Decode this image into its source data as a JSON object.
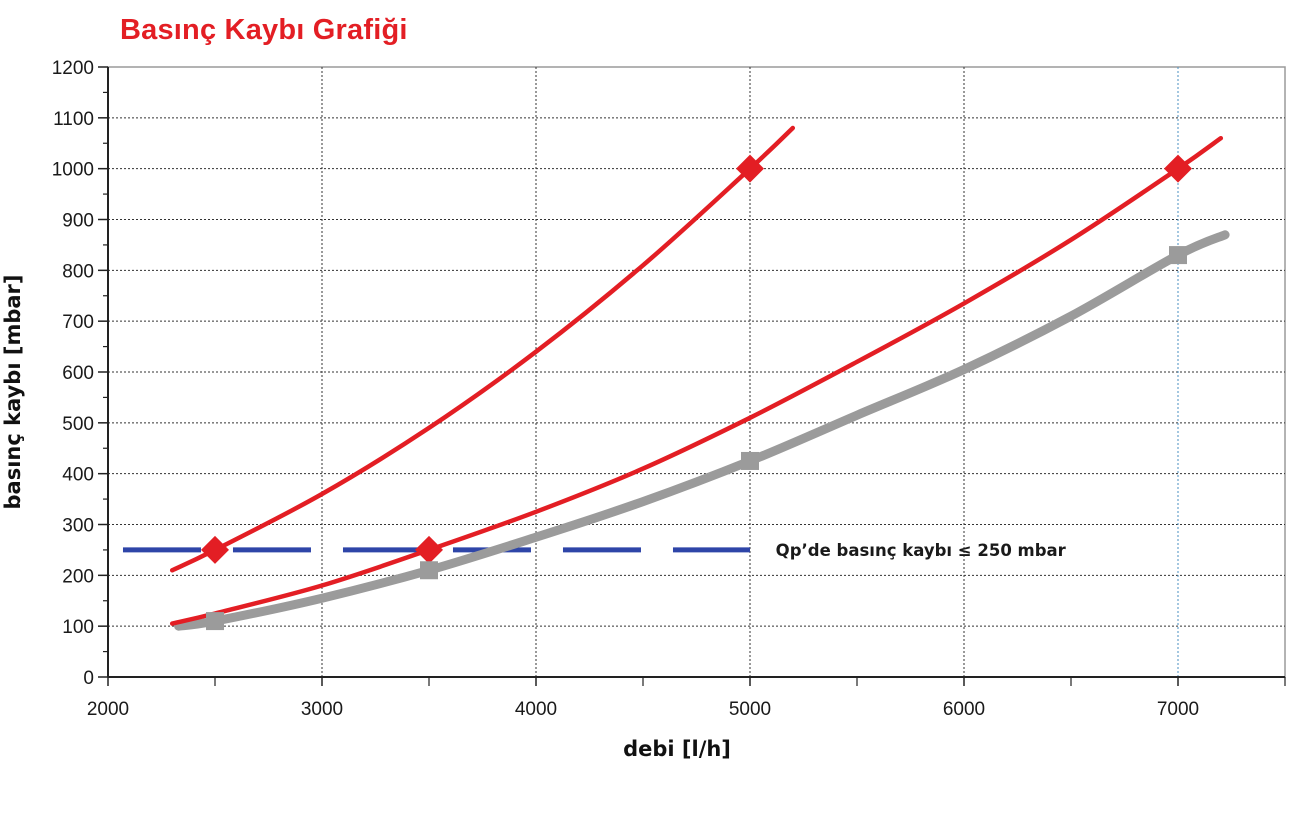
{
  "chart_data": {
    "type": "line",
    "title": "Basınç Kaybı Grafiği",
    "xlabel": "debi [l/h]",
    "ylabel": "basınç kaybı [mbar]",
    "xlim": [
      2000,
      7500
    ],
    "ylim": [
      0,
      1200
    ],
    "x_ticks": [
      2000,
      3000,
      4000,
      5000,
      6000,
      7000
    ],
    "y_ticks": [
      0,
      100,
      200,
      300,
      400,
      500,
      600,
      700,
      800,
      900,
      1000,
      1100,
      1200
    ],
    "grid": true,
    "series": [
      {
        "color": "#e31e24",
        "marker": "diamond",
        "x": [
          2300,
          2500,
          3000,
          3500,
          4000,
          4500,
          5000,
          5200
        ],
        "values": [
          210,
          250,
          360,
          490,
          640,
          810,
          1000,
          1080
        ],
        "marker_points": [
          [
            2500,
            250
          ],
          [
            5000,
            1000
          ]
        ]
      },
      {
        "color": "#e31e24",
        "marker": "diamond",
        "x": [
          2300,
          2500,
          3000,
          3500,
          4000,
          4500,
          5000,
          5500,
          6000,
          6500,
          7000,
          7200
        ],
        "values": [
          105,
          125,
          180,
          250,
          325,
          410,
          510,
          620,
          735,
          860,
          1000,
          1060
        ],
        "marker_points": [
          [
            3500,
            250
          ],
          [
            7000,
            1000
          ]
        ]
      },
      {
        "color": "#9b9b9b",
        "marker": "square",
        "x": [
          2330,
          2500,
          3000,
          3500,
          4000,
          4500,
          5000,
          5500,
          6000,
          6500,
          7000,
          7220
        ],
        "values": [
          100,
          110,
          155,
          210,
          275,
          345,
          425,
          515,
          605,
          710,
          830,
          870
        ],
        "marker_points": [
          [
            2500,
            110
          ],
          [
            3500,
            210
          ],
          [
            5000,
            425
          ],
          [
            7000,
            830
          ]
        ]
      }
    ],
    "reference_line": {
      "y": 250,
      "x_range": [
        2070,
        5000
      ],
      "color": "#2e45a8",
      "style": "dashed"
    },
    "annotations": [
      {
        "text": "Qp’de basınç kaybı ≤ 250 mbar",
        "x": 5120,
        "y": 250
      }
    ]
  }
}
